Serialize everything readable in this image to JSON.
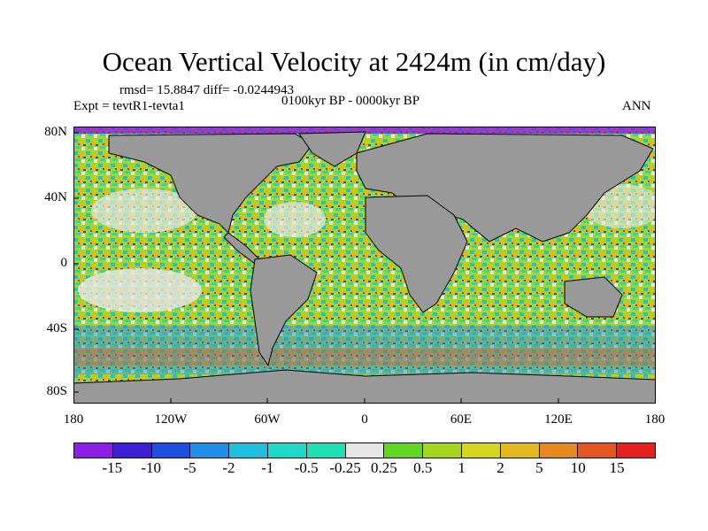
{
  "title": "Ocean Vertical Velocity at 2424m (in cm/day)",
  "stats": "rmsd= 15.8847 diff= -0.0244943",
  "experiment": "Expt = tevtR1-tevta1",
  "period": "0100kyr BP - 0000kyr BP",
  "season": "ANN",
  "lat_labels": [
    "80N",
    "40N",
    "0",
    "40S",
    "80S"
  ],
  "lon_labels": [
    "180",
    "120W",
    "60W",
    "0",
    "60E",
    "120E",
    "180"
  ],
  "colorbar": {
    "labels": [
      "-15",
      "-10",
      "-5",
      "-2",
      "-1",
      "-0.5",
      "-0.25",
      "0.25",
      "0.5",
      "1",
      "2",
      "5",
      "10",
      "15"
    ],
    "colors": [
      "#8c1fe6",
      "#3d1fd6",
      "#1f4fe0",
      "#1f8fe8",
      "#1fbfe0",
      "#1fd8c8",
      "#1fe0b0",
      "#e6e6e6",
      "#5fd61f",
      "#a8d61f",
      "#d6d61f",
      "#e6b81f",
      "#e68a1f",
      "#e6561f",
      "#e61f1f"
    ]
  },
  "map_colors": {
    "land": "#999999",
    "ocean": "#a8d61f",
    "coast": "#000000"
  }
}
